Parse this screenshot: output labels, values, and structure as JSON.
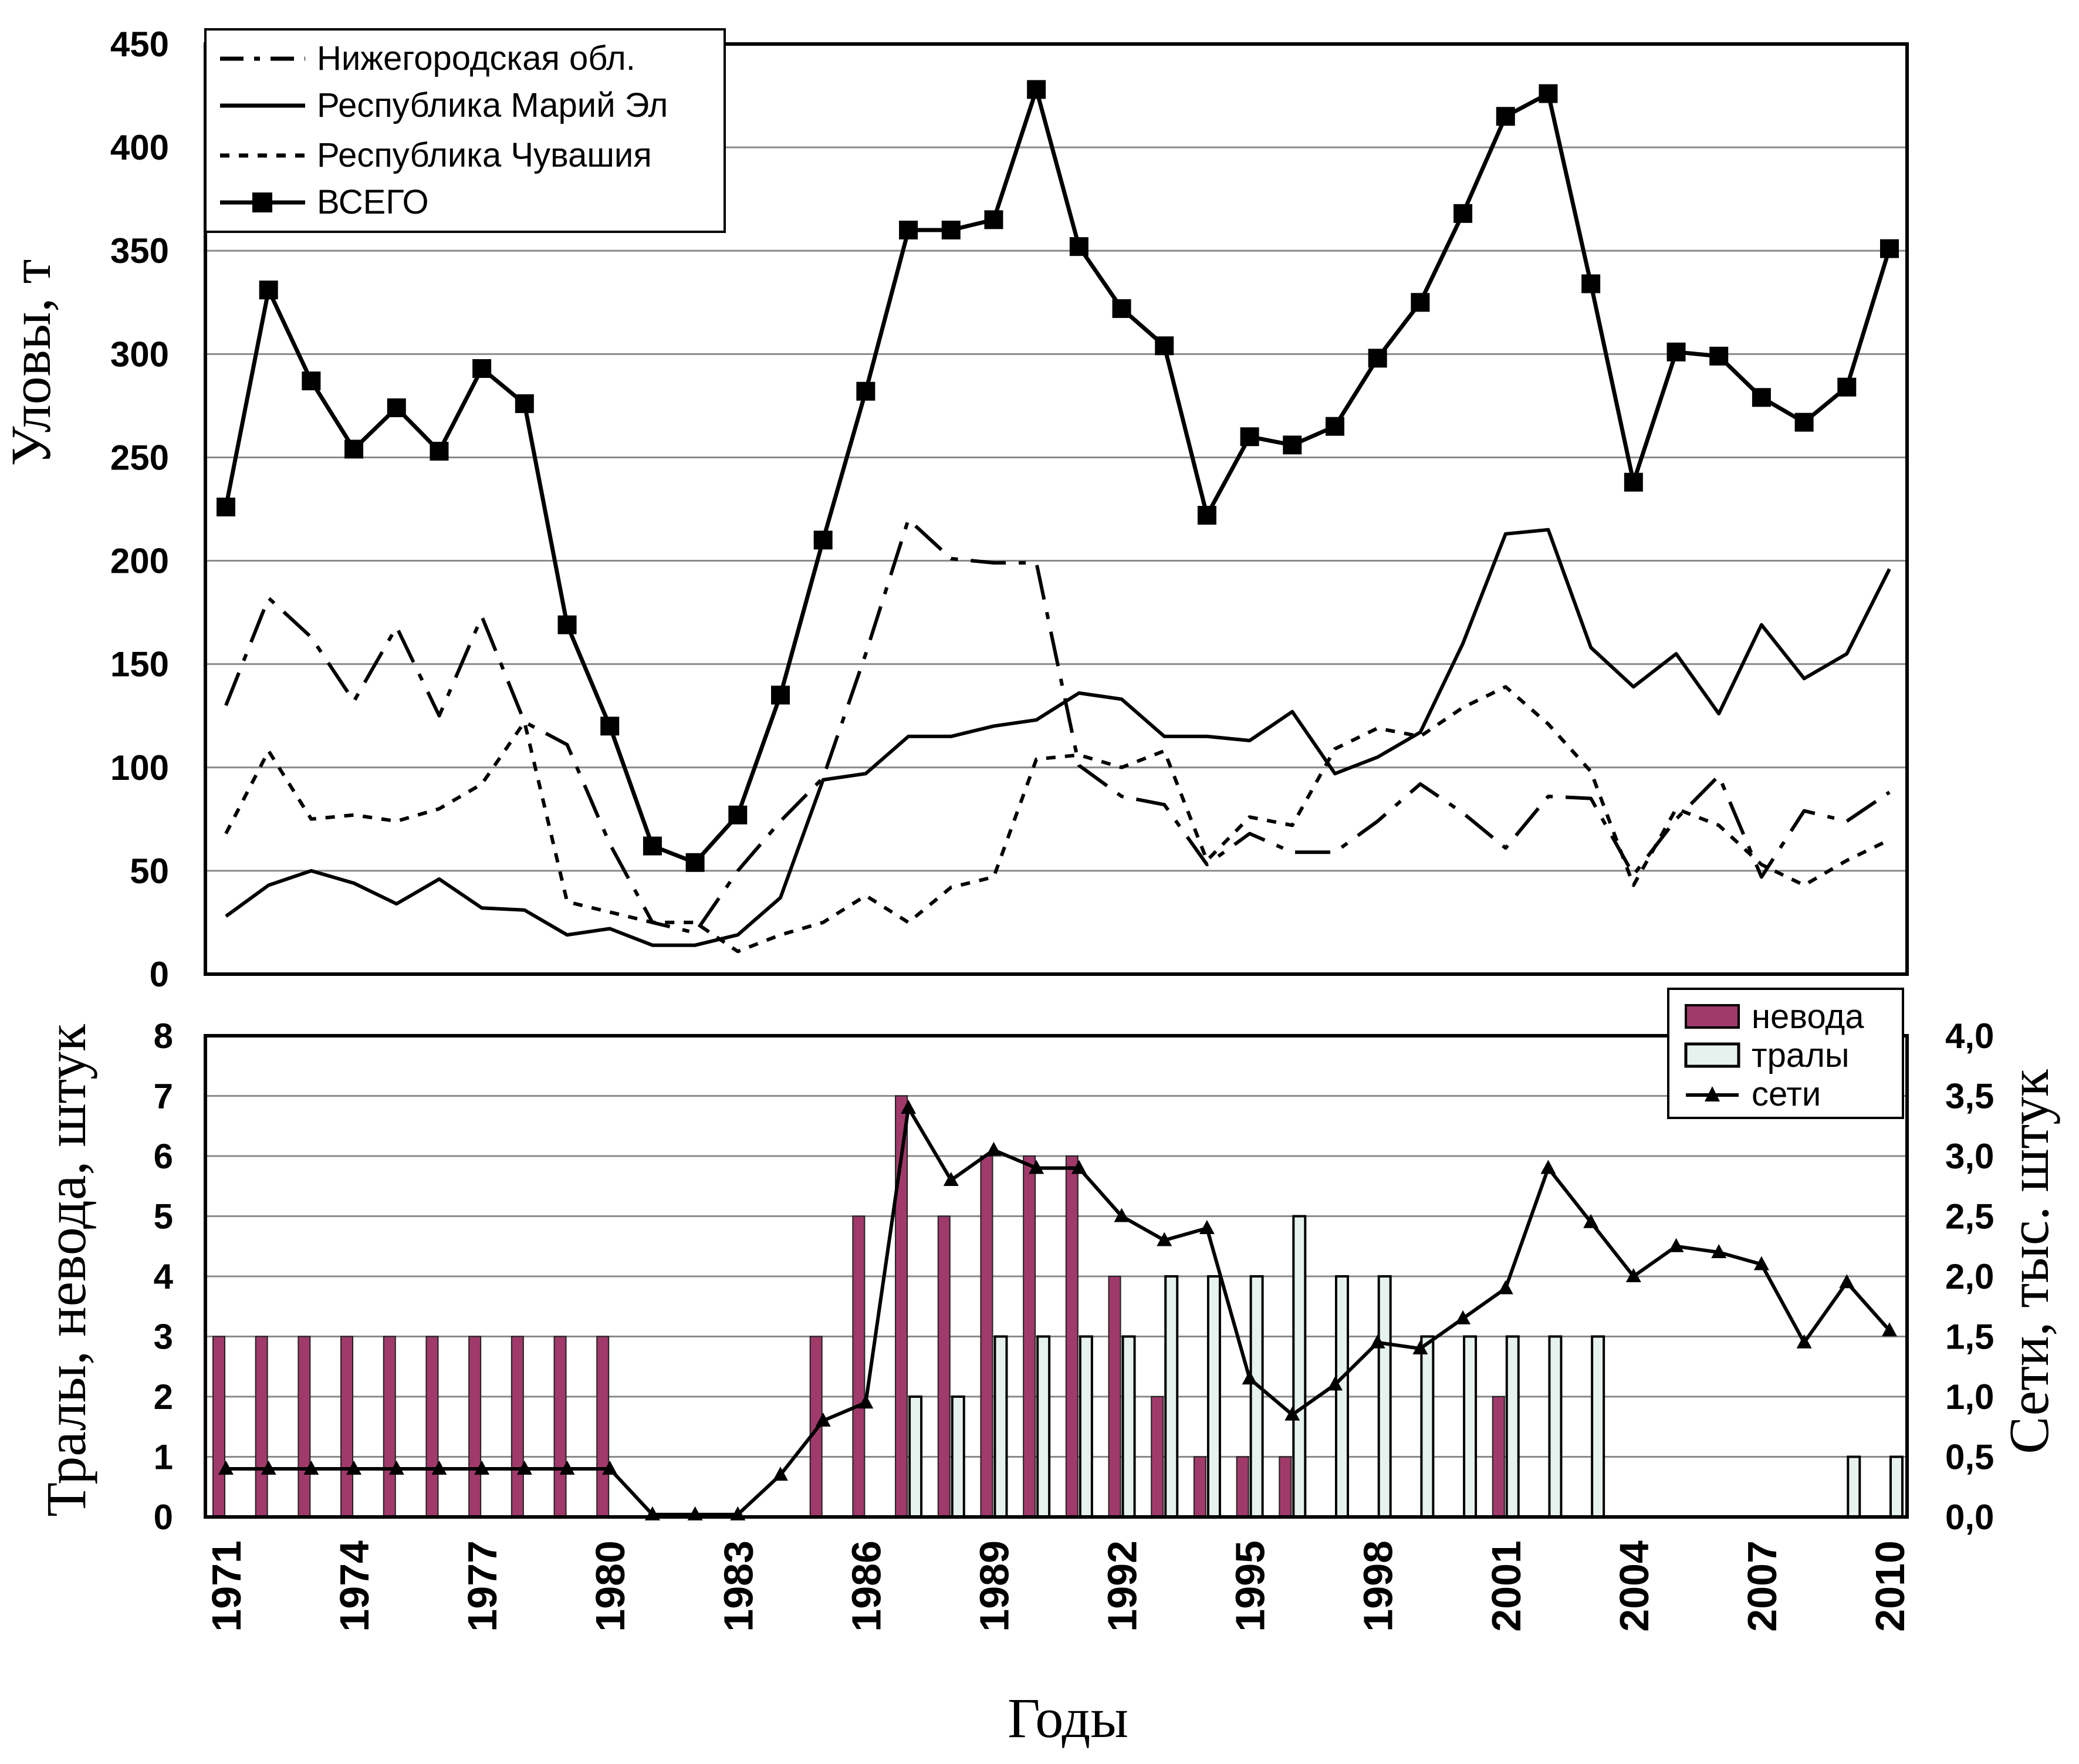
{
  "chart_data": [
    {
      "type": "line",
      "ylabel": "Уловы, т",
      "ylim": [
        0,
        450
      ],
      "yticks": [
        0,
        50,
        100,
        150,
        200,
        250,
        300,
        350,
        400,
        450
      ],
      "grid": true,
      "legend_position": "top-left",
      "x": [
        1971,
        1972,
        1973,
        1974,
        1975,
        1976,
        1977,
        1978,
        1979,
        1980,
        1981,
        1982,
        1983,
        1984,
        1985,
        1986,
        1987,
        1988,
        1989,
        1990,
        1991,
        1992,
        1993,
        1994,
        1995,
        1996,
        1997,
        1998,
        1999,
        2000,
        2001,
        2002,
        2003,
        2004,
        2005,
        2006,
        2007,
        2008,
        2009,
        2010
      ],
      "series": [
        {
          "name": "Нижегородская обл.",
          "style": "dash-dot",
          "color": "#000000",
          "values": [
            130,
            182,
            163,
            132,
            168,
            125,
            173,
            122,
            111,
            63,
            25,
            20,
            50,
            74,
            95,
            155,
            220,
            201,
            199,
            199,
            101,
            86,
            82,
            53,
            68,
            59,
            59,
            74,
            92,
            78,
            61,
            86,
            85,
            48,
            75,
            96,
            47,
            79,
            74,
            88
          ]
        },
        {
          "name": "Республика Марий Эл",
          "style": "solid",
          "color": "#000000",
          "values": [
            28,
            43,
            50,
            44,
            34,
            46,
            32,
            31,
            19,
            22,
            14,
            14,
            19,
            37,
            94,
            97,
            115,
            115,
            120,
            123,
            136,
            133,
            115,
            115,
            113,
            127,
            97,
            105,
            117,
            160,
            213,
            215,
            158,
            139,
            155,
            126,
            169,
            143,
            155,
            196
          ]
        },
        {
          "name": "Республика Чувашия",
          "style": "dotted",
          "color": "#000000",
          "values": [
            68,
            108,
            75,
            77,
            74,
            80,
            92,
            122,
            35,
            30,
            25,
            25,
            11,
            19,
            25,
            38,
            25,
            42,
            47,
            104,
            106,
            100,
            108,
            55,
            76,
            72,
            109,
            119,
            115,
            129,
            139,
            121,
            98,
            43,
            80,
            72,
            53,
            43,
            55,
            65
          ]
        },
        {
          "name": "ВСЕГО",
          "style": "solid-square-markers",
          "color": "#000000",
          "values": [
            226,
            331,
            287,
            254,
            274,
            253,
            293,
            276,
            169,
            120,
            62,
            54,
            77,
            135,
            210,
            282,
            360,
            360,
            365,
            428,
            352,
            322,
            304,
            222,
            260,
            256,
            265,
            298,
            325,
            368,
            415,
            426,
            334,
            238,
            301,
            299,
            279,
            267,
            284,
            351
          ]
        }
      ]
    },
    {
      "type": "bar",
      "ylabel": "Тралы, невода, штук",
      "ylim": [
        0,
        8
      ],
      "yticks": [
        0,
        1,
        2,
        3,
        4,
        5,
        6,
        7,
        8
      ],
      "y2label": "Сети, тыс. штук",
      "y2lim": [
        0,
        4
      ],
      "y2ticks": [
        "0,0",
        "0,5",
        "1,0",
        "1,5",
        "2,0",
        "2,5",
        "3,0",
        "3,5",
        "4,0"
      ],
      "xlabel": "Годы",
      "xticks": [
        "1971",
        "1974",
        "1977",
        "1980",
        "1983",
        "1986",
        "1989",
        "1992",
        "1995",
        "1998",
        "2001",
        "2004",
        "2007",
        "2010"
      ],
      "grid": true,
      "legend_position": "top-right",
      "x": [
        1971,
        1972,
        1973,
        1974,
        1975,
        1976,
        1977,
        1978,
        1979,
        1980,
        1981,
        1982,
        1983,
        1984,
        1985,
        1986,
        1987,
        1988,
        1989,
        1990,
        1991,
        1992,
        1993,
        1994,
        1995,
        1996,
        1997,
        1998,
        1999,
        2000,
        2001,
        2002,
        2003,
        2004,
        2005,
        2006,
        2007,
        2008,
        2009,
        2010
      ],
      "series": [
        {
          "name": "невода",
          "kind": "bar",
          "axis": "left",
          "color": "#a03a6a",
          "values": [
            3,
            3,
            3,
            3,
            3,
            3,
            3,
            3,
            3,
            3,
            0,
            0,
            0,
            0,
            3,
            5,
            7,
            5,
            6,
            6,
            6,
            4,
            2,
            1,
            1,
            1,
            0,
            0,
            0,
            0,
            2,
            0,
            0,
            0,
            0,
            0,
            0,
            0,
            0,
            0
          ]
        },
        {
          "name": "тралы",
          "kind": "bar",
          "axis": "left",
          "color": "#e6f2ee",
          "values": [
            0,
            0,
            0,
            0,
            0,
            0,
            0,
            0,
            0,
            0,
            0,
            0,
            0,
            0,
            0,
            0,
            2,
            2,
            3,
            3,
            3,
            3,
            4,
            4,
            4,
            5,
            4,
            4,
            3,
            3,
            3,
            3,
            3,
            0,
            0,
            0,
            0,
            0,
            1,
            1
          ]
        },
        {
          "name": "сети",
          "kind": "line",
          "axis": "right",
          "color": "#000000",
          "values": [
            0.4,
            0.4,
            0.4,
            0.4,
            0.4,
            0.4,
            0.4,
            0.4,
            0.4,
            0.4,
            0.02,
            0.02,
            0.02,
            0.35,
            0.8,
            0.95,
            3.4,
            2.8,
            3.05,
            2.9,
            2.9,
            2.5,
            2.3,
            2.4,
            1.15,
            0.85,
            1.1,
            1.45,
            1.4,
            1.65,
            1.9,
            2.9,
            2.45,
            2.0,
            2.25,
            2.2,
            2.1,
            1.45,
            1.95,
            1.55
          ]
        }
      ]
    }
  ]
}
